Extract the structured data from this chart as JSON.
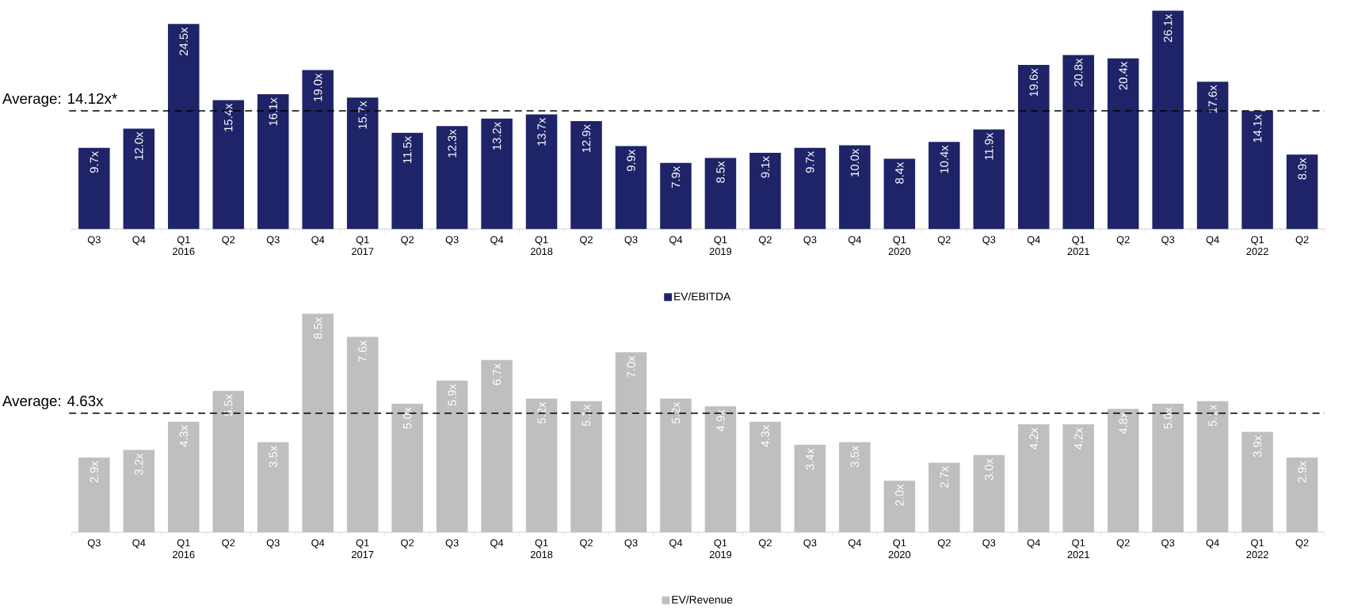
{
  "chart_data": [
    {
      "type": "bar",
      "categories": [
        "Q3",
        "Q4",
        "Q1 2016",
        "Q2",
        "Q3",
        "Q4",
        "Q1 2017",
        "Q2",
        "Q3",
        "Q4",
        "Q1 2018",
        "Q2",
        "Q3",
        "Q4",
        "Q1 2019",
        "Q2",
        "Q3",
        "Q4",
        "Q1 2020",
        "Q2",
        "Q3",
        "Q4",
        "Q1 2021",
        "Q2",
        "Q3",
        "Q4",
        "Q1 2022",
        "Q2"
      ],
      "series": [
        {
          "name": "EV/EBITDA",
          "color": "#1f2468",
          "values": [
            9.7,
            12.0,
            24.5,
            15.4,
            16.1,
            19.0,
            15.7,
            11.5,
            12.3,
            13.2,
            13.7,
            12.9,
            9.9,
            7.9,
            8.5,
            9.1,
            9.7,
            10.0,
            8.4,
            10.4,
            11.9,
            19.6,
            20.8,
            20.4,
            26.1,
            17.6,
            14.1,
            8.9
          ],
          "value_labels": [
            "9.7x",
            "12.0x",
            "24.5x",
            "15.4x",
            "16.1x",
            "19.0x",
            "15.7x",
            "11.5x",
            "12.3x",
            "13.2x",
            "13.7x",
            "12.9x",
            "9.9x",
            "7.9x",
            "8.5x",
            "9.1x",
            "9.7x",
            "10.0x",
            "8.4x",
            "10.4x",
            "11.9x",
            "19.6x",
            "20.8x",
            "20.4x",
            "26.1x",
            "17.6x",
            "14.1x",
            "8.9x"
          ]
        }
      ],
      "ref_lines": [
        {
          "axis": "y",
          "value": 14.12,
          "label": "Average: 14.12x*",
          "color": "#000000",
          "line_style": "dashed"
        }
      ],
      "tick_labels": "x",
      "legend": "bottom",
      "grid": false
    },
    {
      "type": "bar",
      "categories": [
        "Q3",
        "Q4",
        "Q1 2016",
        "Q2",
        "Q3",
        "Q4",
        "Q1 2017",
        "Q2",
        "Q3",
        "Q4",
        "Q1 2018",
        "Q2",
        "Q3",
        "Q4",
        "Q1 2019",
        "Q2",
        "Q3",
        "Q4",
        "Q1 2020",
        "Q2",
        "Q3",
        "Q4",
        "Q1 2021",
        "Q2",
        "Q3",
        "Q4",
        "Q1 2022",
        "Q2"
      ],
      "series": [
        {
          "name": "EV/Revenue",
          "color": "#bfbfbf",
          "values": [
            2.9,
            3.2,
            4.3,
            5.5,
            3.5,
            8.5,
            7.6,
            5.0,
            5.9,
            6.7,
            5.2,
            5.1,
            7.0,
            5.2,
            4.9,
            4.3,
            3.4,
            3.5,
            2.0,
            2.7,
            3.0,
            4.2,
            4.2,
            4.8,
            5.0,
            5.1,
            3.9,
            2.9
          ],
          "value_labels": [
            "2.9x",
            "3.2x",
            "4.3x",
            "5.5x",
            "3.5x",
            "8.5x",
            "7.6x",
            "5.0x",
            "5.9x",
            "6.7x",
            "5.2x",
            "5.1x",
            "7.0x",
            "5.2x",
            "4.9x",
            "4.3x",
            "3.4x",
            "3.5x",
            "2.0x",
            "2.7x",
            "3.0x",
            "4.2x",
            "4.2x",
            "4.8x",
            "5.0x",
            "5.1x",
            "3.9x",
            "2.9x"
          ]
        }
      ],
      "ref_lines": [
        {
          "axis": "y",
          "value": 4.63,
          "label": "Average: 4.63x",
          "color": "#000000",
          "line_style": "dashed"
        }
      ],
      "tick_labels": "x",
      "legend": "bottom",
      "grid": false
    }
  ]
}
